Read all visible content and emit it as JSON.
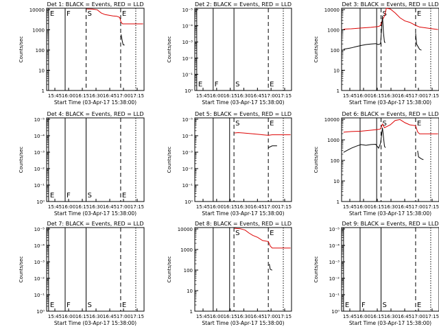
{
  "figure": {
    "background": "#ffffff",
    "axis_color": "#000000"
  },
  "chart_data": [
    {
      "type": "line",
      "title": "Det 1: BLACK = Events, RED = LLD",
      "xlabel": "Start Time (03-Apr-17 15:38:00)",
      "ylabel": "Counts/sec",
      "xticks": [
        "15:45",
        "16:00",
        "16:15",
        "16:30",
        "16:45",
        "17:00",
        "17:15"
      ],
      "yticks": [
        "1",
        "10",
        "100",
        "1000",
        "10000"
      ],
      "ylim": [
        1,
        12000
      ],
      "markers": [
        {
          "label": "E",
          "time": 0.02,
          "style": "solid"
        },
        {
          "label": "F",
          "time": 0.19,
          "style": "solid"
        },
        {
          "label": "S",
          "time": 0.405,
          "style": "dashed"
        },
        {
          "label": "E",
          "time": 0.76,
          "style": "dashed"
        },
        {
          "label": "",
          "time": 0.915,
          "style": "dotted"
        }
      ],
      "series": [
        {
          "color": "#dd0000",
          "points": [
            [
              0.41,
              11000
            ],
            [
              0.47,
              10800
            ],
            [
              0.52,
              10000
            ],
            [
              0.56,
              7000
            ],
            [
              0.6,
              5800
            ],
            [
              0.68,
              5000
            ],
            [
              0.72,
              4800
            ],
            [
              0.75,
              4200
            ],
            [
              0.765,
              2400
            ],
            [
              0.78,
              2000
            ],
            [
              0.99,
              2000
            ]
          ]
        },
        {
          "color": "#000000",
          "points": [
            [
              0.765,
              600
            ],
            [
              0.775,
              300
            ],
            [
              0.785,
              185
            ],
            [
              0.8,
              180
            ]
          ]
        }
      ]
    },
    {
      "type": "line",
      "title": "Det 2: BLACK = Events, RED = LLD",
      "xlabel": "Start Time (03-Apr-17 15:38:00)",
      "ylabel": "Counts/sec",
      "xticks": [
        "15:45",
        "16:00",
        "16:15",
        "16:30",
        "16:45",
        "17:00",
        "17:15"
      ],
      "yticks": [
        "10⁰",
        "10⁻¹",
        "10⁻²",
        "10⁻³",
        "10⁻⁴",
        "10⁻⁵"
      ],
      "ylim": [
        1,
        12000
      ],
      "markers": [
        {
          "label": "E",
          "time": 0.02,
          "style": "solid"
        },
        {
          "label": "F",
          "time": 0.19,
          "style": "solid"
        },
        {
          "label": "S",
          "time": 0.405,
          "style": "solid"
        },
        {
          "label": "E",
          "time": 0.76,
          "style": "dashed"
        },
        {
          "label": "",
          "time": 0.915,
          "style": "dotted"
        }
      ],
      "series": []
    },
    {
      "type": "line",
      "title": "Det 3: BLACK = Events, RED = LLD",
      "xlabel": "Start Time (03-Apr-17 15:38:00)",
      "ylabel": "Counts/sec",
      "xticks": [
        "15:45",
        "16:00",
        "16:15",
        "16:30",
        "16:45",
        "17:00",
        "17:15"
      ],
      "yticks": [
        "1",
        "10",
        "100",
        "1000",
        "10000"
      ],
      "ylim": [
        1,
        12000
      ],
      "markers": [
        {
          "label": "",
          "time": 0.19,
          "style": "solid"
        },
        {
          "label": "",
          "time": 0.36,
          "style": "solid"
        },
        {
          "label": "S",
          "time": 0.405,
          "style": "dashed"
        },
        {
          "label": "E",
          "time": 0.76,
          "style": "dashed"
        },
        {
          "label": "",
          "time": 0.915,
          "style": "dotted"
        }
      ],
      "series": [
        {
          "color": "#dd0000",
          "points": [
            [
              0.02,
              1100
            ],
            [
              0.1,
              1150
            ],
            [
              0.2,
              1250
            ],
            [
              0.3,
              1350
            ],
            [
              0.38,
              1500
            ],
            [
              0.4,
              1700
            ],
            [
              0.42,
              3200
            ],
            [
              0.44,
              5000
            ],
            [
              0.46,
              12000
            ],
            [
              0.5,
              11000
            ],
            [
              0.55,
              7000
            ],
            [
              0.6,
              4000
            ],
            [
              0.65,
              2800
            ],
            [
              0.7,
              2400
            ],
            [
              0.76,
              1700
            ],
            [
              0.8,
              1400
            ],
            [
              0.9,
              1200
            ],
            [
              0.99,
              1050
            ]
          ]
        },
        {
          "color": "#000000",
          "points": [
            [
              0.02,
              110
            ],
            [
              0.1,
              130
            ],
            [
              0.15,
              150
            ],
            [
              0.2,
              170
            ],
            [
              0.25,
              190
            ],
            [
              0.3,
              200
            ],
            [
              0.35,
              210
            ],
            [
              0.38,
              190
            ],
            [
              0.4,
              210
            ],
            [
              0.42,
              5000
            ],
            [
              0.43,
              700
            ],
            [
              0.44,
              250
            ],
            [
              0.45,
              240
            ]
          ]
        },
        {
          "color": "#000000",
          "points": [
            [
              0.76,
              700
            ],
            [
              0.77,
              200
            ],
            [
              0.8,
              110
            ],
            [
              0.82,
              100
            ]
          ]
        }
      ]
    },
    {
      "type": "line",
      "title": "Det 4: BLACK = Events, RED = LLD",
      "xlabel": "Start Time (03-Apr-17 15:38:00)",
      "ylabel": "Counts/sec",
      "xticks": [
        "15:45",
        "16:00",
        "16:15",
        "16:30",
        "16:45",
        "17:00",
        "17:15"
      ],
      "yticks": [
        "10⁰",
        "10⁻¹",
        "10⁻²",
        "10⁻³",
        "10⁻⁴",
        "10⁻⁵"
      ],
      "ylim": [
        1,
        12000
      ],
      "markers": [
        {
          "label": "E",
          "time": 0.02,
          "style": "solid"
        },
        {
          "label": "F",
          "time": 0.19,
          "style": "solid"
        },
        {
          "label": "S",
          "time": 0.405,
          "style": "solid"
        },
        {
          "label": "E",
          "time": 0.76,
          "style": "dashed"
        },
        {
          "label": "",
          "time": 0.915,
          "style": "dotted"
        }
      ],
      "series": []
    },
    {
      "type": "line",
      "title": "Det 5: BLACK = Events, RED = LLD",
      "xlabel": "Start Time (03-Apr-17 15:38:00)",
      "ylabel": "Counts/sec",
      "xticks": [
        "15:45",
        "16:00",
        "16:15",
        "16:30",
        "16:45",
        "17:00",
        "17:15"
      ],
      "yticks": [
        "10⁰",
        "10⁻¹",
        "10⁻²",
        "10⁻³",
        "10⁻⁴",
        "10⁻⁵"
      ],
      "ylim": [
        1,
        12000
      ],
      "markers": [
        {
          "label": "",
          "time": 0.19,
          "style": "solid"
        },
        {
          "label": "",
          "time": 0.36,
          "style": "solid"
        },
        {
          "label": "S",
          "time": 0.405,
          "style": "dashed"
        },
        {
          "label": "E",
          "time": 0.76,
          "style": "dashed"
        },
        {
          "label": "",
          "time": 0.915,
          "style": "dotted"
        }
      ],
      "series": [
        {
          "color": "#dd0000",
          "points": [
            [
              0.41,
              2200
            ],
            [
              0.45,
              2300
            ],
            [
              0.5,
              2200
            ],
            [
              0.6,
              2000
            ],
            [
              0.7,
              1800
            ],
            [
              0.76,
              1700
            ],
            [
              0.8,
              1800
            ],
            [
              0.9,
              1800
            ],
            [
              0.99,
              1800
            ]
          ]
        },
        {
          "color": "#000000",
          "points": [
            [
              0.76,
              420
            ],
            [
              0.8,
              520
            ],
            [
              0.85,
              520
            ]
          ]
        }
      ]
    },
    {
      "type": "line",
      "title": "Det 6: BLACK = Events, RED = LLD",
      "xlabel": "Start Time (03-Apr-17 15:38:00)",
      "ylabel": "Counts/sec",
      "xticks": [
        "15:45",
        "16:00",
        "16:15",
        "16:30",
        "16:45",
        "17:00",
        "17:15"
      ],
      "yticks": [
        "1",
        "10",
        "100",
        "1000",
        "10000"
      ],
      "ylim": [
        1,
        12000
      ],
      "markers": [
        {
          "label": "",
          "time": 0.19,
          "style": "solid"
        },
        {
          "label": "",
          "time": 0.36,
          "style": "solid"
        },
        {
          "label": "S",
          "time": 0.405,
          "style": "dashed"
        },
        {
          "label": "E",
          "time": 0.76,
          "style": "dashed"
        },
        {
          "label": "",
          "time": 0.915,
          "style": "dotted"
        }
      ],
      "series": [
        {
          "color": "#dd0000",
          "points": [
            [
              0.02,
              2400
            ],
            [
              0.1,
              2600
            ],
            [
              0.2,
              2700
            ],
            [
              0.3,
              3000
            ],
            [
              0.38,
              3300
            ],
            [
              0.4,
              3500
            ],
            [
              0.42,
              6000
            ],
            [
              0.44,
              4000
            ],
            [
              0.5,
              5500
            ],
            [
              0.55,
              9000
            ],
            [
              0.6,
              10000
            ],
            [
              0.65,
              7000
            ],
            [
              0.7,
              5500
            ],
            [
              0.76,
              5000
            ],
            [
              0.78,
              2500
            ],
            [
              0.8,
              2000
            ],
            [
              0.99,
              2000
            ]
          ]
        },
        {
          "color": "#000000",
          "points": [
            [
              0.02,
              250
            ],
            [
              0.05,
              300
            ],
            [
              0.1,
              400
            ],
            [
              0.15,
              500
            ],
            [
              0.2,
              600
            ],
            [
              0.25,
              550
            ],
            [
              0.3,
              600
            ],
            [
              0.35,
              620
            ],
            [
              0.38,
              400
            ],
            [
              0.4,
              700
            ],
            [
              0.42,
              4000
            ],
            [
              0.44,
              500
            ],
            [
              0.45,
              420
            ]
          ]
        },
        {
          "color": "#000000",
          "points": [
            [
              0.78,
              300
            ],
            [
              0.79,
              150
            ],
            [
              0.82,
              120
            ],
            [
              0.84,
              110
            ]
          ]
        }
      ]
    },
    {
      "type": "line",
      "title": "Det 7: BLACK = Events, RED = LLD",
      "xlabel": "Start Time (03-Apr-17 15:38:00)",
      "ylabel": "Counts/sec",
      "xticks": [
        "15:45",
        "16:00",
        "16:15",
        "16:30",
        "16:45",
        "17:00",
        "17:15"
      ],
      "yticks": [
        "10⁰",
        "10⁻¹",
        "10⁻²",
        "10⁻³",
        "10⁻⁴",
        "10⁻⁵"
      ],
      "ylim": [
        1,
        12000
      ],
      "markers": [
        {
          "label": "E",
          "time": 0.02,
          "style": "solid"
        },
        {
          "label": "F",
          "time": 0.19,
          "style": "solid"
        },
        {
          "label": "S",
          "time": 0.405,
          "style": "solid"
        },
        {
          "label": "E",
          "time": 0.76,
          "style": "dashed"
        },
        {
          "label": "",
          "time": 0.915,
          "style": "dotted"
        }
      ],
      "series": []
    },
    {
      "type": "line",
      "title": "Det 8: BLACK = Events, RED = LLD",
      "xlabel": "Start Time (03-Apr-17 15:38:00)",
      "ylabel": "Counts/sec",
      "xticks": [
        "15:45",
        "16:00",
        "16:15",
        "16:30",
        "16:45",
        "17:00",
        "17:15"
      ],
      "yticks": [
        "1",
        "10",
        "100",
        "1000",
        "10000"
      ],
      "ylim": [
        1,
        12000
      ],
      "markers": [
        {
          "label": "",
          "time": 0.19,
          "style": "solid"
        },
        {
          "label": "",
          "time": 0.36,
          "style": "solid"
        },
        {
          "label": "S",
          "time": 0.405,
          "style": "dashed"
        },
        {
          "label": "E",
          "time": 0.76,
          "style": "dashed"
        },
        {
          "label": "",
          "time": 0.915,
          "style": "dotted"
        }
      ],
      "series": [
        {
          "color": "#dd0000",
          "points": [
            [
              0.41,
              11000
            ],
            [
              0.47,
              10500
            ],
            [
              0.52,
              9000
            ],
            [
              0.56,
              6500
            ],
            [
              0.6,
              5000
            ],
            [
              0.65,
              4000
            ],
            [
              0.7,
              2800
            ],
            [
              0.76,
              2500
            ],
            [
              0.78,
              1500
            ],
            [
              0.8,
              1200
            ],
            [
              0.99,
              1200
            ]
          ]
        },
        {
          "color": "#000000",
          "points": [
            [
              0.77,
              200
            ],
            [
              0.78,
              110
            ],
            [
              0.8,
              100
            ]
          ]
        }
      ]
    },
    {
      "type": "line",
      "title": "Det 9: BLACK = Events, RED = LLD",
      "xlabel": "Start Time (03-Apr-17 15:38:00)",
      "ylabel": "Counts/sec",
      "xticks": [
        "15:45",
        "16:00",
        "16:15",
        "16:30",
        "16:45",
        "17:00",
        "17:15"
      ],
      "yticks": [
        "10⁰",
        "10⁻¹",
        "10⁻²",
        "10⁻³",
        "10⁻⁴",
        "10⁻⁵"
      ],
      "ylim": [
        1,
        12000
      ],
      "markers": [
        {
          "label": "E",
          "time": 0.02,
          "style": "solid"
        },
        {
          "label": "F",
          "time": 0.19,
          "style": "solid"
        },
        {
          "label": "S",
          "time": 0.405,
          "style": "solid"
        },
        {
          "label": "E",
          "time": 0.76,
          "style": "dashed"
        },
        {
          "label": "",
          "time": 0.915,
          "style": "dotted"
        }
      ],
      "series": []
    }
  ]
}
